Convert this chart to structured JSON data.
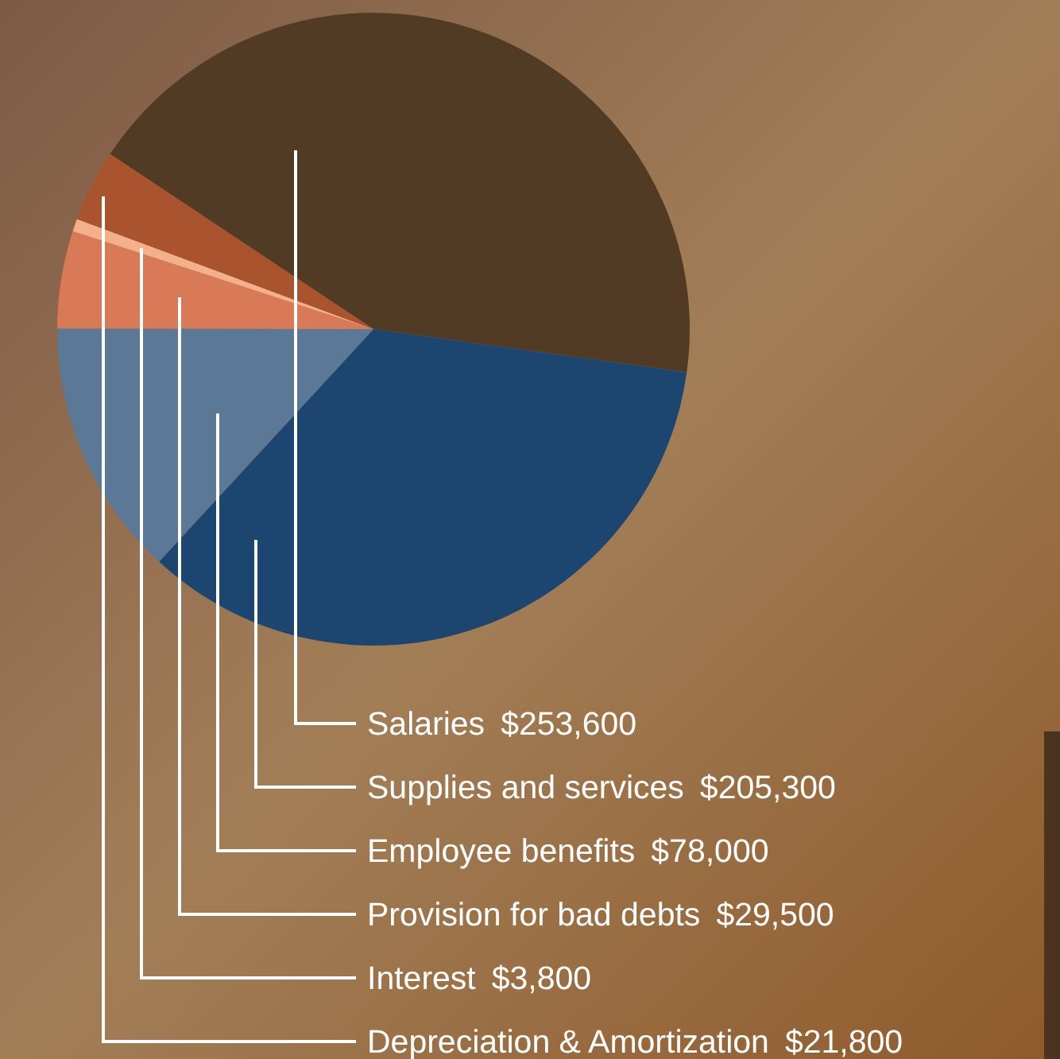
{
  "chart_data": {
    "type": "pie",
    "categories": [
      "Salaries",
      "Supplies and services",
      "Employee benefits",
      "Provision for bad debts",
      "Interest",
      "Depreciation & Amortization"
    ],
    "values": [
      253600,
      205300,
      78000,
      29500,
      3800,
      21800
    ],
    "colors": [
      "#523b24",
      "#1c4670",
      "#5b7896",
      "#d87a58",
      "#f4b08a",
      "#a9532f"
    ],
    "value_labels": [
      "$253,600",
      "$205,300",
      "$78,000",
      "$29,500",
      "$3,800",
      "$21,800"
    ]
  }
}
